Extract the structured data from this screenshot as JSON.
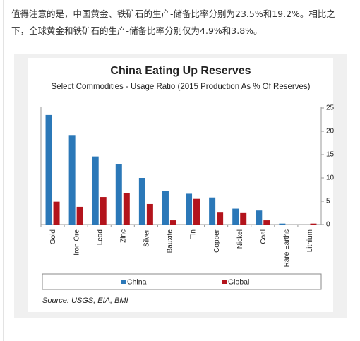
{
  "paragraph": "值得注意的是，中国黄金、铁矿石的生产-储备比率分别为23.5%和19.2%。相比之下，全球黄金和铁矿石的生产-储备比率分别仅为4.9%和3.8%。",
  "chart_data": {
    "type": "bar",
    "title": "China Eating Up Reserves",
    "subtitle": "Select Commodities - Usage Ratio (2015 Production As % Of Reserves)",
    "source": "Source: USGS, EIA, BMI",
    "categories": [
      "Gold",
      "Iron Ore",
      "Lead",
      "Zinc",
      "Silver",
      "Bauxite",
      "Tin",
      "Copper",
      "Nickel",
      "Coal",
      "Rare Earths",
      "Lithium"
    ],
    "series": [
      {
        "name": "China",
        "color": "#2b78b8",
        "values": [
          23.5,
          19.2,
          14.6,
          12.9,
          10.0,
          7.2,
          6.6,
          5.8,
          3.4,
          3.0,
          0.2,
          0
        ]
      },
      {
        "name": "Global",
        "color": "#b3141c",
        "values": [
          4.9,
          3.8,
          5.9,
          6.7,
          4.4,
          0.9,
          5.5,
          2.7,
          2.6,
          0.9,
          0,
          0.2
        ]
      }
    ],
    "ylim": [
      0,
      25
    ],
    "yticks": [
      0,
      5,
      10,
      15,
      20,
      25
    ],
    "y_axis_side": "right",
    "grid": false
  }
}
